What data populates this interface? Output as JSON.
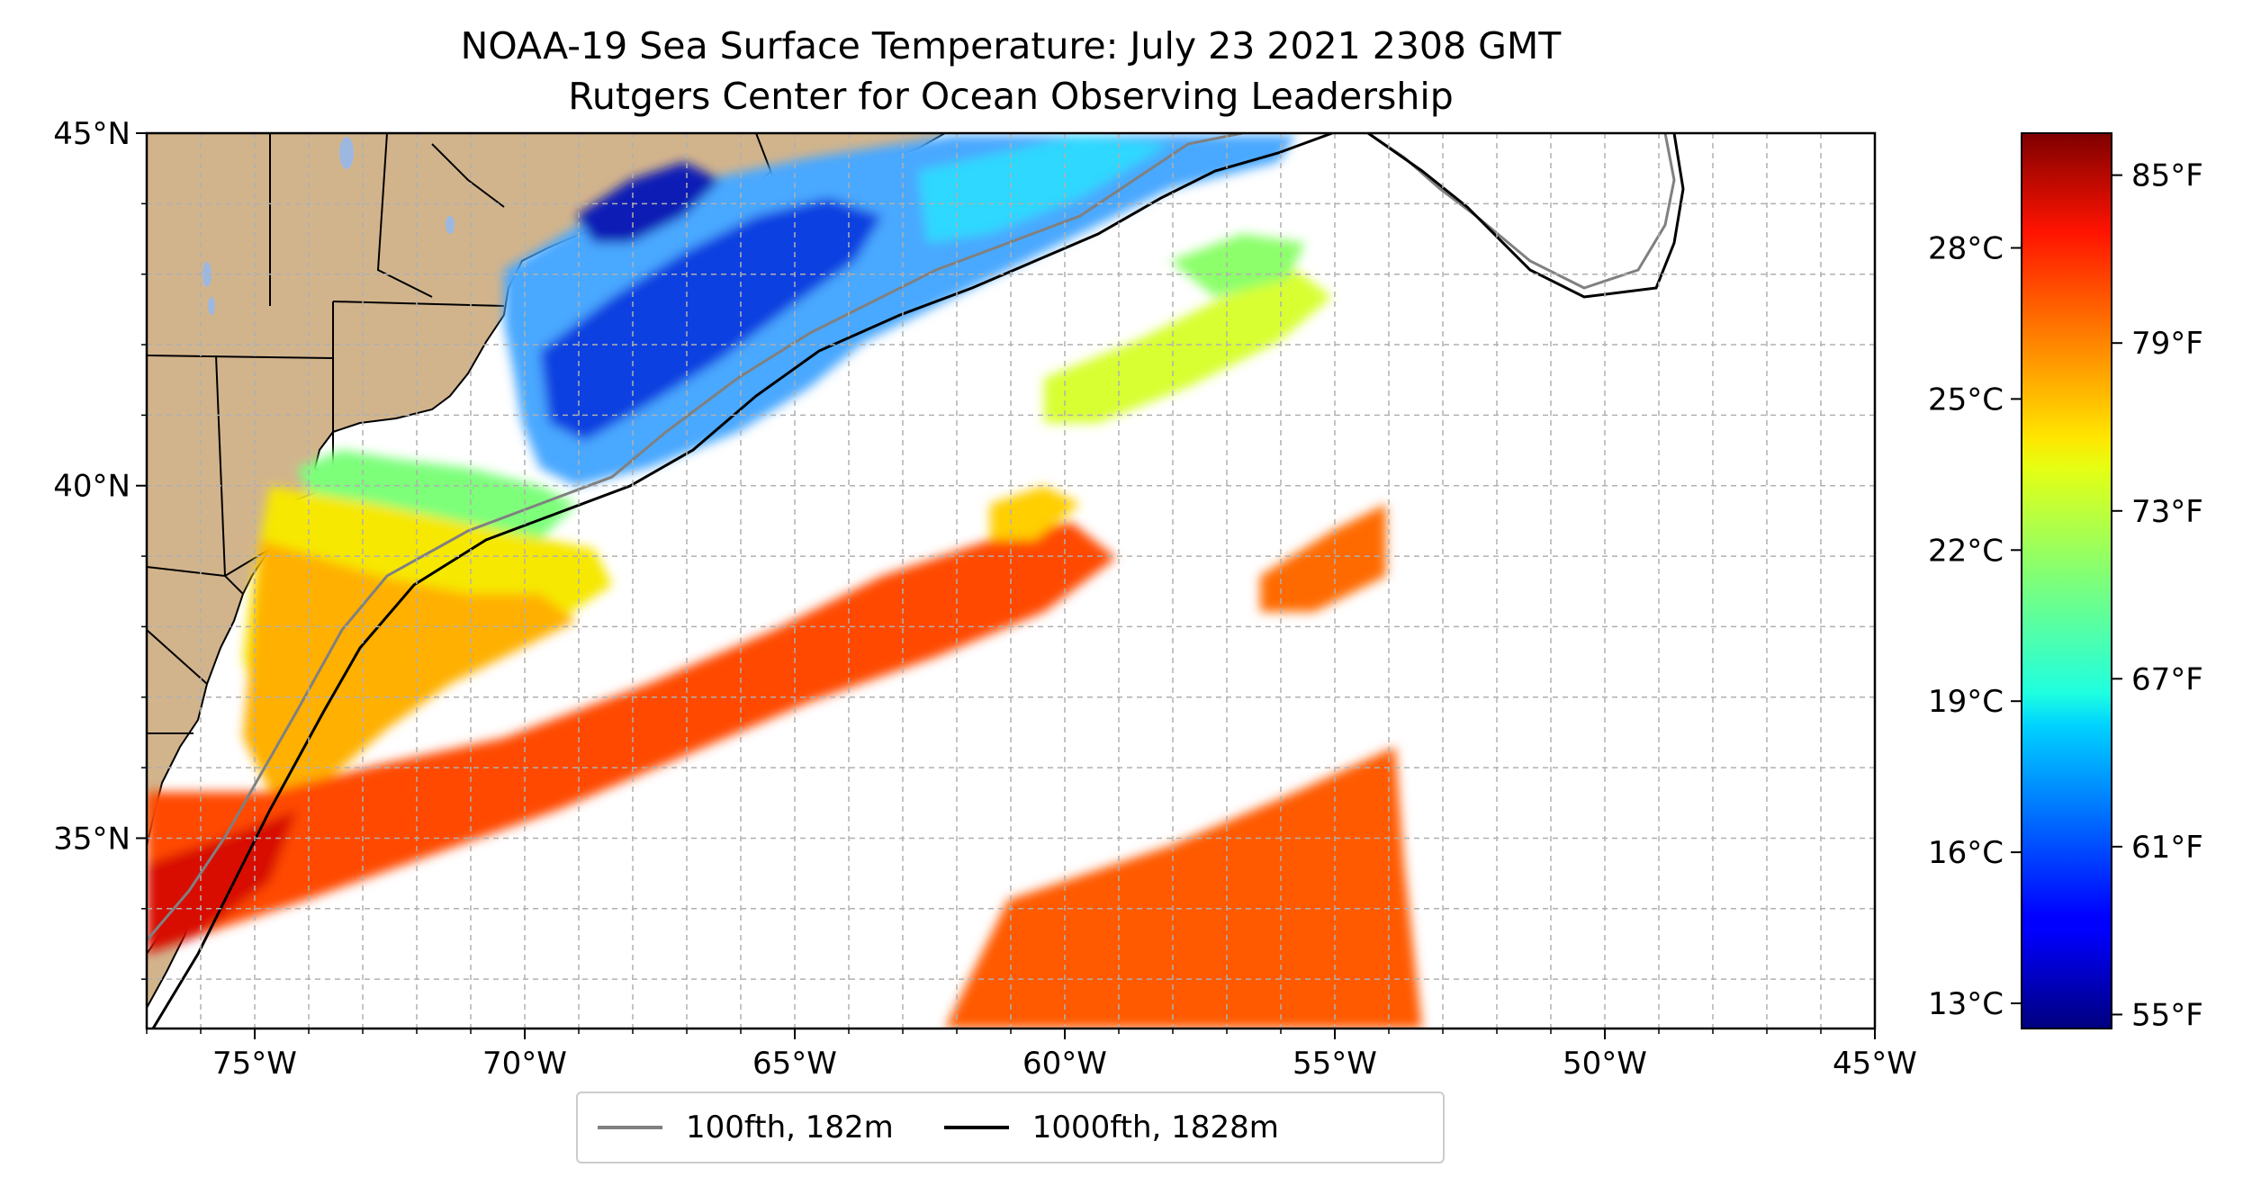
{
  "title": {
    "line1": "NOAA-19 Sea Surface Temperature: July 23 2021 2308 GMT",
    "line2": "Rutgers Center for Ocean Observing Leadership"
  },
  "map": {
    "lon_range": [
      -77,
      -45
    ],
    "lat_range": [
      32.3,
      45
    ],
    "x_ticks": [
      "75°W",
      "70°W",
      "65°W",
      "60°W",
      "55°W",
      "50°W",
      "45°W"
    ],
    "y_ticks": [
      "35°N",
      "40°N",
      "45°N"
    ],
    "land_color": "#d2b48c",
    "gridlines": true
  },
  "legend": {
    "items": [
      {
        "label": "100fth, 182m",
        "color": "#808080"
      },
      {
        "label": "1000fth, 1828m",
        "color": "#000000"
      }
    ],
    "placement": "bottom-center"
  },
  "colorbar": {
    "colormap": "jet",
    "range_F": [
      54.5,
      86.5
    ],
    "celsius_ticks": [
      "13°C",
      "16°C",
      "19°C",
      "22°C",
      "25°C",
      "28°C"
    ],
    "fahrenheit_ticks": [
      "55°F",
      "61°F",
      "67°F",
      "73°F",
      "79°F",
      "85°F"
    ]
  }
}
